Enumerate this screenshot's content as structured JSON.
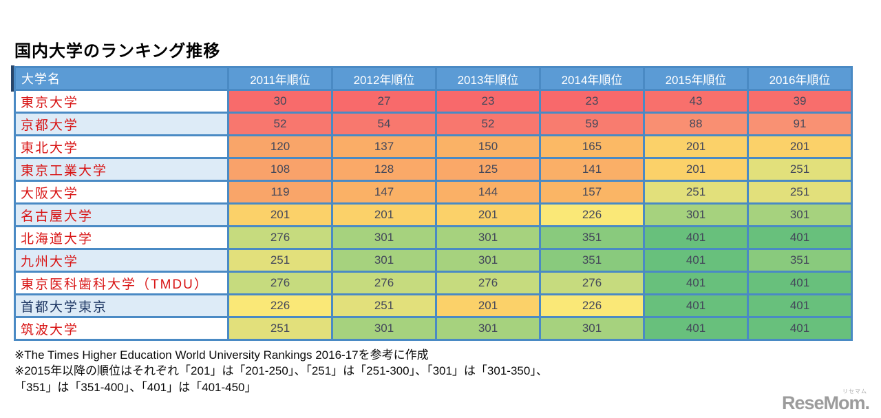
{
  "title": "国内大学のランキング推移",
  "chart_data": {
    "type": "heatmap",
    "title": "国内大学のランキング推移",
    "row_header": "大学名",
    "categories": [
      "2011年順位",
      "2012年順位",
      "2013年順位",
      "2014年順位",
      "2015年順位",
      "2016年順位"
    ],
    "series": [
      {
        "name": "東京大学",
        "name_style": "red",
        "values": [
          30,
          27,
          23,
          23,
          43,
          39
        ]
      },
      {
        "name": "京都大学",
        "name_style": "red",
        "values": [
          52,
          54,
          52,
          59,
          88,
          91
        ]
      },
      {
        "name": "東北大学",
        "name_style": "red",
        "values": [
          120,
          137,
          150,
          165,
          201,
          201
        ]
      },
      {
        "name": "東京工業大学",
        "name_style": "red",
        "values": [
          108,
          128,
          125,
          141,
          201,
          251
        ]
      },
      {
        "name": "大阪大学",
        "name_style": "red",
        "values": [
          119,
          147,
          144,
          157,
          251,
          251
        ]
      },
      {
        "name": "名古屋大学",
        "name_style": "red",
        "values": [
          201,
          201,
          201,
          226,
          301,
          301
        ]
      },
      {
        "name": "北海道大学",
        "name_style": "red",
        "values": [
          276,
          301,
          301,
          351,
          401,
          401
        ]
      },
      {
        "name": "九州大学",
        "name_style": "red",
        "values": [
          251,
          301,
          301,
          351,
          401,
          351
        ]
      },
      {
        "name": "東京医科歯科大学（TMDU）",
        "name_style": "red",
        "values": [
          276,
          276,
          276,
          276,
          401,
          401
        ]
      },
      {
        "name": "首都大学東京",
        "name_style": "dark",
        "values": [
          226,
          251,
          201,
          226,
          401,
          401
        ]
      },
      {
        "name": "筑波大学",
        "name_style": "red",
        "values": [
          251,
          301,
          301,
          301,
          401,
          401
        ]
      }
    ],
    "value_colors": {
      "23": "#F8696B",
      "27": "#F86A6B",
      "30": "#F86B6B",
      "39": "#F86E6C",
      "43": "#F8706C",
      "52": "#F8776E",
      "54": "#F8786E",
      "59": "#F87C6F",
      "88": "#F98F72",
      "91": "#F99173",
      "108": "#F9A26A",
      "119": "#F9A569",
      "120": "#F9A569",
      "125": "#FAA868",
      "128": "#FAA968",
      "137": "#FAAD67",
      "141": "#FAAF67",
      "144": "#FAB066",
      "147": "#FAB166",
      "150": "#FAB266",
      "157": "#FAB565",
      "165": "#FBB965",
      "201": "#FBD169",
      "226": "#FAE877",
      "251": "#E2E07B",
      "276": "#C6DB7E",
      "301": "#A6D27E",
      "351": "#89CA7D",
      "401": "#68C07C"
    },
    "color_scale": {
      "min_color": "#F8696B",
      "mid_color": "#FAE877",
      "max_color": "#68C07C"
    },
    "legend_position": "none"
  },
  "footnotes": [
    "※The Times Higher Education World University Rankings 2016-17を参考に作成",
    "※2015年以降の順位はそれぞれ「201」は「201-250」、「251」は「251-300」、「301」は「301-350」、",
    "「351」は「351-400」、「401」は「401-450」"
  ],
  "logo": {
    "text": "ReseMom.",
    "ruby": "リセマム"
  },
  "colors": {
    "page_bg": "#FFFFFF",
    "title_color": "#000000",
    "header_bg": "#5B9BD5",
    "header_text": "#FFFFFF",
    "grid": "#4A8AC4",
    "row_bg": "#FFFFFF",
    "row_alt_bg": "#DDEBF7",
    "name_red": "#D81414",
    "name_dark": "#1F3864",
    "value_text": "#44485A",
    "accent_bar": "#27456A",
    "footnote_color": "#0A0A0A",
    "logo_gray": "#9C9C9C"
  }
}
